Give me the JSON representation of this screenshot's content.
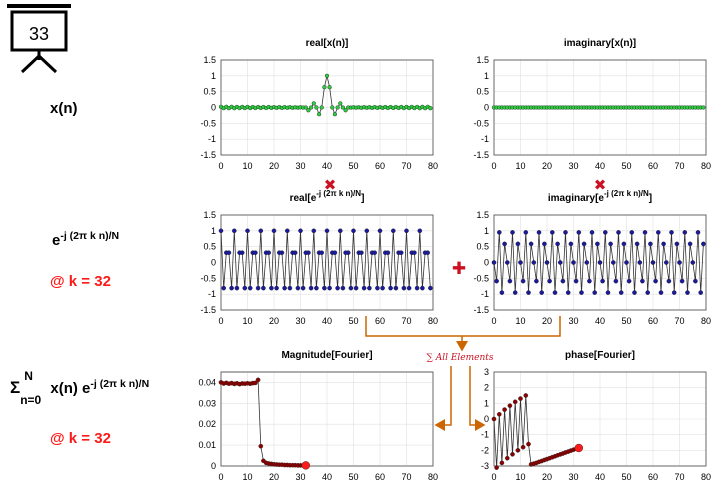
{
  "slide": {
    "number": "33"
  },
  "left_labels": {
    "signal": "x(n)",
    "kernel_base": "e",
    "kernel_exp": "-j (2π k n)/N",
    "k_note": "@ k = 32",
    "sum_sigma": "Σ",
    "sum_upper": "N",
    "sum_lower": "n=0",
    "sum_body": " x(n) e",
    "sum_exp": "-j (2π k n)/N",
    "k_note2": "@ k = 32"
  },
  "operators": {
    "multiply": "✖",
    "add": "✚"
  },
  "sum_annotation": "∑ All Elements",
  "colors": {
    "green_marker": "#2ecc40",
    "blue_marker": "#1a1a9c",
    "red_marker": "#ff1a1a",
    "dark_red_marker": "#8b0000",
    "arrow": "#cc6600",
    "line": "#333333"
  },
  "chart_data": [
    {
      "id": "real_x",
      "type": "line",
      "title": "real[x(n)]",
      "x": {
        "start": 0,
        "step": 1,
        "count": 80
      },
      "xlim": [
        0,
        80
      ],
      "ylim": [
        -1.5,
        1.5
      ],
      "xticks": [
        "0",
        "10",
        "20",
        "30",
        "40",
        "50",
        "60",
        "70",
        "80"
      ],
      "yticks": [
        "1.5",
        "1",
        "0.5",
        "0",
        "-0.5",
        "-1",
        "-1.5"
      ],
      "series": [
        {
          "formula": "sinc((n-40)/2)",
          "values": [
            0.023,
            -0.023,
            0.022,
            -0.022,
            0.021,
            -0.021,
            0.02,
            -0.02,
            0.019,
            -0.019,
            0.018,
            -0.018,
            0.017,
            -0.017,
            0.016,
            -0.016,
            0.015,
            -0.015,
            0.015,
            -0.014,
            0.014,
            -0.013,
            0.012,
            -0.012,
            0.011,
            -0.01,
            0.009,
            -0.008,
            0.007,
            -0.006,
            0.005,
            -0.004,
            0.0,
            -0.09,
            0.0,
            0.13,
            0.0,
            -0.21,
            0.0,
            0.64,
            1.0,
            0.64,
            0.0,
            -0.21,
            0.0,
            0.13,
            0.0,
            -0.09,
            0.0,
            -0.004,
            0.005,
            -0.006,
            0.007,
            -0.008,
            0.009,
            -0.01,
            0.011,
            -0.012,
            0.012,
            -0.013,
            0.014,
            -0.014,
            0.015,
            -0.015,
            0.015,
            -0.016,
            0.016,
            -0.017,
            0.017,
            -0.018,
            0.018,
            -0.019,
            0.019,
            -0.02,
            0.02,
            -0.021,
            0.021,
            -0.022,
            0.022,
            -0.023
          ]
        }
      ],
      "marker_color": "#2ecc40",
      "grid": true
    },
    {
      "id": "imag_x",
      "type": "line",
      "title": "imaginary[x(n)]",
      "x": {
        "start": 0,
        "step": 1,
        "count": 80
      },
      "xlim": [
        0,
        80
      ],
      "ylim": [
        -1.5,
        1.5
      ],
      "xticks": [
        "0",
        "10",
        "20",
        "30",
        "40",
        "50",
        "60",
        "70",
        "80"
      ],
      "yticks": [
        "1.5",
        "1",
        "0.5",
        "0",
        "-0.5",
        "-1",
        "-1.5"
      ],
      "series": [
        {
          "formula": "0",
          "values": "zeros"
        }
      ],
      "marker_color": "#2ecc40",
      "grid": true
    },
    {
      "id": "real_kernel",
      "type": "line",
      "title": "real[e",
      "title_sup": "-j (2π k n)/N",
      "title_end": "]",
      "x": {
        "start": 0,
        "step": 1,
        "count": 80
      },
      "xlim": [
        0,
        80
      ],
      "ylim": [
        -1.5,
        1.5
      ],
      "xticks": [
        "0",
        "10",
        "20",
        "30",
        "40",
        "50",
        "60",
        "70",
        "80"
      ],
      "yticks": [
        "1.5",
        "1",
        "0.5",
        "0",
        "-0.5",
        "-1",
        "-1.5"
      ],
      "series": [
        {
          "formula": "cos(2*pi*32*n/80)",
          "repeating_values": [
            1.0,
            -0.809,
            0.309,
            0.309,
            -0.809
          ]
        }
      ],
      "marker_color": "#1a1a9c",
      "grid": true
    },
    {
      "id": "imag_kernel",
      "type": "line",
      "title": "imaginary[e",
      "title_sup": "-j (2π k n)/N",
      "title_end": "]",
      "x": {
        "start": 0,
        "step": 1,
        "count": 80
      },
      "xlim": [
        0,
        80
      ],
      "ylim": [
        -1.5,
        1.5
      ],
      "xticks": [
        "0",
        "10",
        "20",
        "30",
        "40",
        "50",
        "60",
        "70",
        "80"
      ],
      "yticks": [
        "1.5",
        "1",
        "0.5",
        "0",
        "-0.5",
        "-1",
        "-1.5"
      ],
      "series": [
        {
          "formula": "-sin(2*pi*32*n/80)",
          "repeating_values": [
            0.0,
            -0.588,
            0.951,
            -0.951,
            0.588
          ]
        }
      ],
      "marker_color": "#1a1a9c",
      "grid": true
    },
    {
      "id": "magnitude",
      "type": "line",
      "title": "Magnitude[Fourier]",
      "x": {
        "start": 0,
        "step": 1,
        "count": 33
      },
      "xlim": [
        0,
        80
      ],
      "ylim": [
        0,
        0.045
      ],
      "xticks": [
        "0",
        "10",
        "20",
        "30",
        "40",
        "50",
        "60",
        "70",
        "80"
      ],
      "ytick_values": [
        0,
        0.01,
        0.02,
        0.03,
        0.04
      ],
      "yticks": [
        "0",
        "0.01",
        "0.02",
        "0.03",
        "0.04"
      ],
      "series": [
        {
          "values": [
            0.04,
            0.0395,
            0.0398,
            0.0394,
            0.0397,
            0.0393,
            0.0396,
            0.0392,
            0.0395,
            0.0394,
            0.0396,
            0.0394,
            0.0397,
            0.0398,
            0.0412,
            0.0095,
            0.0025,
            0.0015,
            0.0012,
            0.001,
            0.0008,
            0.0007,
            0.0006,
            0.0006,
            0.0005,
            0.0005,
            0.0004,
            0.0004,
            0.0004,
            0.0003,
            0.0003,
            0.0003,
            0.0003
          ]
        }
      ],
      "marker_color": "#8b0000",
      "highlight_index": 32,
      "highlight_color": "#ff1a1a",
      "grid": true
    },
    {
      "id": "phase",
      "type": "line",
      "title": "phase[Fourier]",
      "x": {
        "start": 0,
        "step": 1,
        "count": 33
      },
      "xlim": [
        0,
        80
      ],
      "ylim": [
        -3,
        3
      ],
      "xticks": [
        "0",
        "10",
        "20",
        "30",
        "40",
        "50",
        "60",
        "70",
        "80"
      ],
      "ytick_values": [
        3,
        2,
        1,
        0,
        -1,
        -2,
        -3
      ],
      "yticks": [
        "3",
        "2",
        "1",
        "0",
        "-1",
        "-2",
        "-3"
      ],
      "series": [
        {
          "values": [
            0.0,
            -3.1,
            0.3,
            -2.8,
            0.6,
            -2.5,
            0.85,
            -2.25,
            1.1,
            -2.0,
            1.3,
            -1.8,
            1.5,
            -1.6,
            -2.9,
            -2.85,
            -2.8,
            -2.74,
            -2.68,
            -2.62,
            -2.56,
            -2.5,
            -2.44,
            -2.38,
            -2.32,
            -2.26,
            -2.2,
            -2.14,
            -2.08,
            -2.02,
            -1.96,
            -1.9,
            -1.85
          ]
        }
      ],
      "marker_color": "#8b0000",
      "highlight_index": 32,
      "highlight_color": "#ff1a1a",
      "grid": true
    }
  ]
}
